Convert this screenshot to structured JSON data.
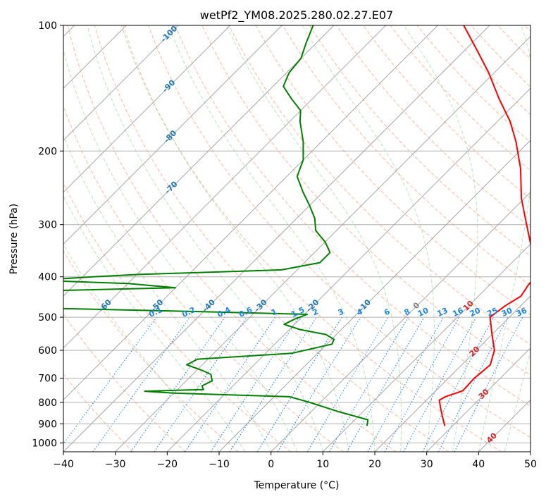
{
  "chart_data": {
    "type": "skew-t",
    "title": "wetPf2_YM08.2025.280.02.27.E07",
    "xlabel": "Temperature (°C)",
    "ylabel": "Pressure (hPa)",
    "xlim": [
      -40,
      50
    ],
    "ylim": [
      1050,
      100
    ],
    "y_scale": "log",
    "x_ticks": [
      "−40",
      "−30",
      "−20",
      "−10",
      "0",
      "10",
      "20",
      "30",
      "40",
      "50"
    ],
    "y_ticks": [
      {
        "p": 100,
        "label": "100"
      },
      {
        "p": 200,
        "label": "200"
      },
      {
        "p": 300,
        "label": "300"
      },
      {
        "p": 400,
        "label": "400"
      },
      {
        "p": 500,
        "label": "500"
      },
      {
        "p": 600,
        "label": "600"
      },
      {
        "p": 700,
        "label": "700"
      },
      {
        "p": 800,
        "label": "800"
      },
      {
        "p": 900,
        "label": "900"
      },
      {
        "p": 1000,
        "label": "1000"
      }
    ],
    "grid": true,
    "isotherm_labels": [
      {
        "t": -100,
        "label": "-100",
        "color": "#1f77b4"
      },
      {
        "t": -90,
        "label": "-90",
        "color": "#1f77b4"
      },
      {
        "t": -80,
        "label": "-80",
        "color": "#1f77b4"
      },
      {
        "t": -70,
        "label": "-70",
        "color": "#1f77b4"
      },
      {
        "t": -60,
        "label": "-60",
        "color": "#1f77b4"
      },
      {
        "t": -50,
        "label": "-50",
        "color": "#1f77b4"
      },
      {
        "t": -40,
        "label": "-40",
        "color": "#1f77b4"
      },
      {
        "t": -30,
        "label": "-30",
        "color": "#1f77b4"
      },
      {
        "t": -20,
        "label": "-20",
        "color": "#1f77b4"
      },
      {
        "t": -10,
        "label": "-10",
        "color": "#1f77b4"
      },
      {
        "t": 0,
        "label": "0",
        "color": "#808080"
      },
      {
        "t": 10,
        "label": "10",
        "color": "#d62728"
      },
      {
        "t": 20,
        "label": "20",
        "color": "#d62728"
      },
      {
        "t": 30,
        "label": "30",
        "color": "#d62728"
      },
      {
        "t": 40,
        "label": "40",
        "color": "#d62728"
      }
    ],
    "mixing_ratio_labels": [
      "0.1",
      "0.2",
      "0.4",
      "0.6",
      "1",
      "1.5",
      "2",
      "3",
      "4",
      "6",
      "8",
      "10",
      "13",
      "16",
      "20",
      "25",
      "30",
      "36"
    ],
    "series": [
      {
        "name": "",
        "color": "#ff0000",
        "points": [
          {
            "p": 910,
            "t": 28.5
          },
          {
            "p": 860,
            "t": 26.0
          },
          {
            "p": 820,
            "t": 24.0
          },
          {
            "p": 790,
            "t": 22.5
          },
          {
            "p": 775,
            "t": 23.0
          },
          {
            "p": 750,
            "t": 25.2
          },
          {
            "p": 700,
            "t": 25.0
          },
          {
            "p": 650,
            "t": 25.5
          },
          {
            "p": 600,
            "t": 23.5
          },
          {
            "p": 550,
            "t": 20.0
          },
          {
            "p": 500,
            "t": 16.3
          },
          {
            "p": 470,
            "t": 17.0
          },
          {
            "p": 445,
            "t": 18.2
          },
          {
            "p": 420,
            "t": 17.5
          },
          {
            "p": 390,
            "t": 17.0
          },
          {
            "p": 350,
            "t": 12.0
          },
          {
            "p": 300,
            "t": 5.5
          },
          {
            "p": 260,
            "t": -0.5
          },
          {
            "p": 220,
            "t": -6.5
          },
          {
            "p": 190,
            "t": -12.5
          },
          {
            "p": 170,
            "t": -17.5
          },
          {
            "p": 150,
            "t": -24.0
          },
          {
            "p": 130,
            "t": -31.0
          },
          {
            "p": 115,
            "t": -37.5
          },
          {
            "p": 100,
            "t": -45.0
          }
        ]
      },
      {
        "name": "",
        "color": "#008000",
        "points": [
          {
            "p": 910,
            "t": 13.5
          },
          {
            "p": 880,
            "t": 12.5
          },
          {
            "p": 840,
            "t": 5.0
          },
          {
            "p": 800,
            "t": -2.0
          },
          {
            "p": 775,
            "t": -7.0
          },
          {
            "p": 760,
            "t": -30.0
          },
          {
            "p": 752,
            "t": -36.0
          },
          {
            "p": 748,
            "t": -30.0
          },
          {
            "p": 745,
            "t": -25.0
          },
          {
            "p": 730,
            "t": -26.0
          },
          {
            "p": 710,
            "t": -25.0
          },
          {
            "p": 685,
            "t": -26.5
          },
          {
            "p": 670,
            "t": -29.0
          },
          {
            "p": 650,
            "t": -33.0
          },
          {
            "p": 630,
            "t": -32.0
          },
          {
            "p": 610,
            "t": -15.0
          },
          {
            "p": 580,
            "t": -9.0
          },
          {
            "p": 565,
            "t": -9.5
          },
          {
            "p": 550,
            "t": -12.0
          },
          {
            "p": 535,
            "t": -18.0
          },
          {
            "p": 520,
            "t": -22.0
          },
          {
            "p": 505,
            "t": -21.0
          },
          {
            "p": 492,
            "t": -19.5
          },
          {
            "p": 485,
            "t": -40.0
          },
          {
            "p": 470,
            "t": -90.0
          },
          {
            "p": 460,
            "t": -110.0
          },
          {
            "p": 450,
            "t": -120.0
          },
          {
            "p": 440,
            "t": -100.0
          },
          {
            "p": 425,
            "t": -50.0
          },
          {
            "p": 415,
            "t": -60.0
          },
          {
            "p": 408,
            "t": -78.0
          },
          {
            "p": 400,
            "t": -68.0
          },
          {
            "p": 395,
            "t": -60.0
          },
          {
            "p": 385,
            "t": -33.0
          },
          {
            "p": 370,
            "t": -27.0
          },
          {
            "p": 350,
            "t": -27.0
          },
          {
            "p": 330,
            "t": -30.0
          },
          {
            "p": 310,
            "t": -34.0
          },
          {
            "p": 290,
            "t": -36.5
          },
          {
            "p": 270,
            "t": -40.0
          },
          {
            "p": 250,
            "t": -44.0
          },
          {
            "p": 230,
            "t": -48.0
          },
          {
            "p": 210,
            "t": -50.0
          },
          {
            "p": 190,
            "t": -53.5
          },
          {
            "p": 170,
            "t": -58.0
          },
          {
            "p": 160,
            "t": -60.0
          },
          {
            "p": 150,
            "t": -64.0
          },
          {
            "p": 140,
            "t": -68.0
          },
          {
            "p": 130,
            "t": -69.5
          },
          {
            "p": 120,
            "t": -70.0
          },
          {
            "p": 110,
            "t": -72.0
          },
          {
            "p": 100,
            "t": -74.0
          }
        ]
      }
    ]
  }
}
